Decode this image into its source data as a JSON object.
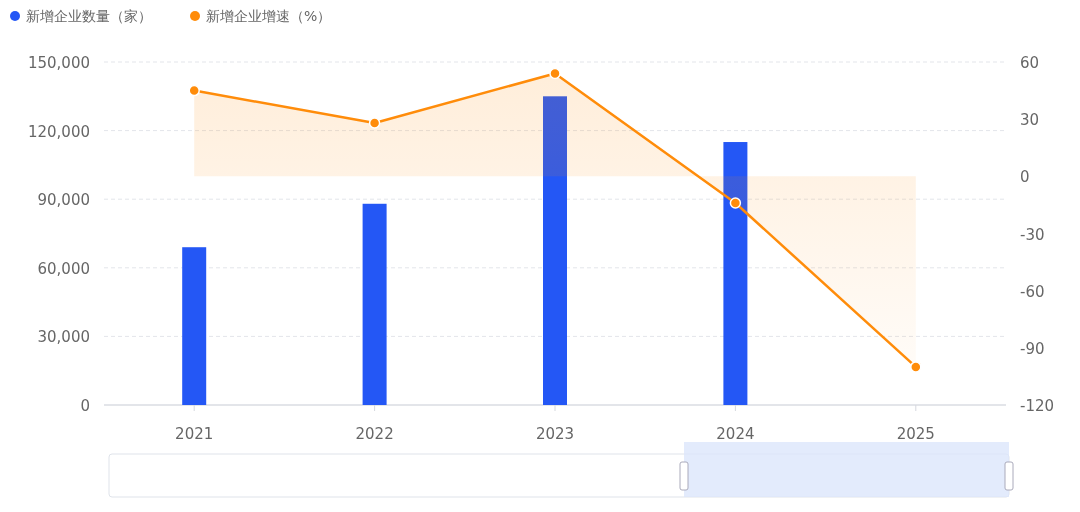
{
  "chart_data": {
    "type": "bar",
    "categories": [
      "2021",
      "2022",
      "2023",
      "2024",
      "2025"
    ],
    "series": [
      {
        "name": "新增企业数量（家）",
        "color": "#2457f5",
        "values": [
          69000,
          88000,
          135000,
          115000,
          null
        ]
      },
      {
        "name": "新增企业增速（%）",
        "type": "area",
        "axis": "y2",
        "color": "#ff8c0a",
        "values": [
          45,
          28,
          54,
          -14,
          -100
        ]
      }
    ],
    "ylim": [
      0,
      150000
    ],
    "yticks": [
      {
        "value": 0,
        "label": "0"
      },
      {
        "value": 30000,
        "label": "30,000"
      },
      {
        "value": 60000,
        "label": "60,000"
      },
      {
        "value": 90000,
        "label": "90,000"
      },
      {
        "value": 120000,
        "label": "120,000"
      },
      {
        "value": 150000,
        "label": "150,000"
      }
    ],
    "y2lim": [
      -120,
      60
    ],
    "y2ticks": [
      -120,
      -90,
      -60,
      -30,
      0,
      30,
      60
    ],
    "grid": "y",
    "legend": "top left",
    "marker": "circle"
  }
}
